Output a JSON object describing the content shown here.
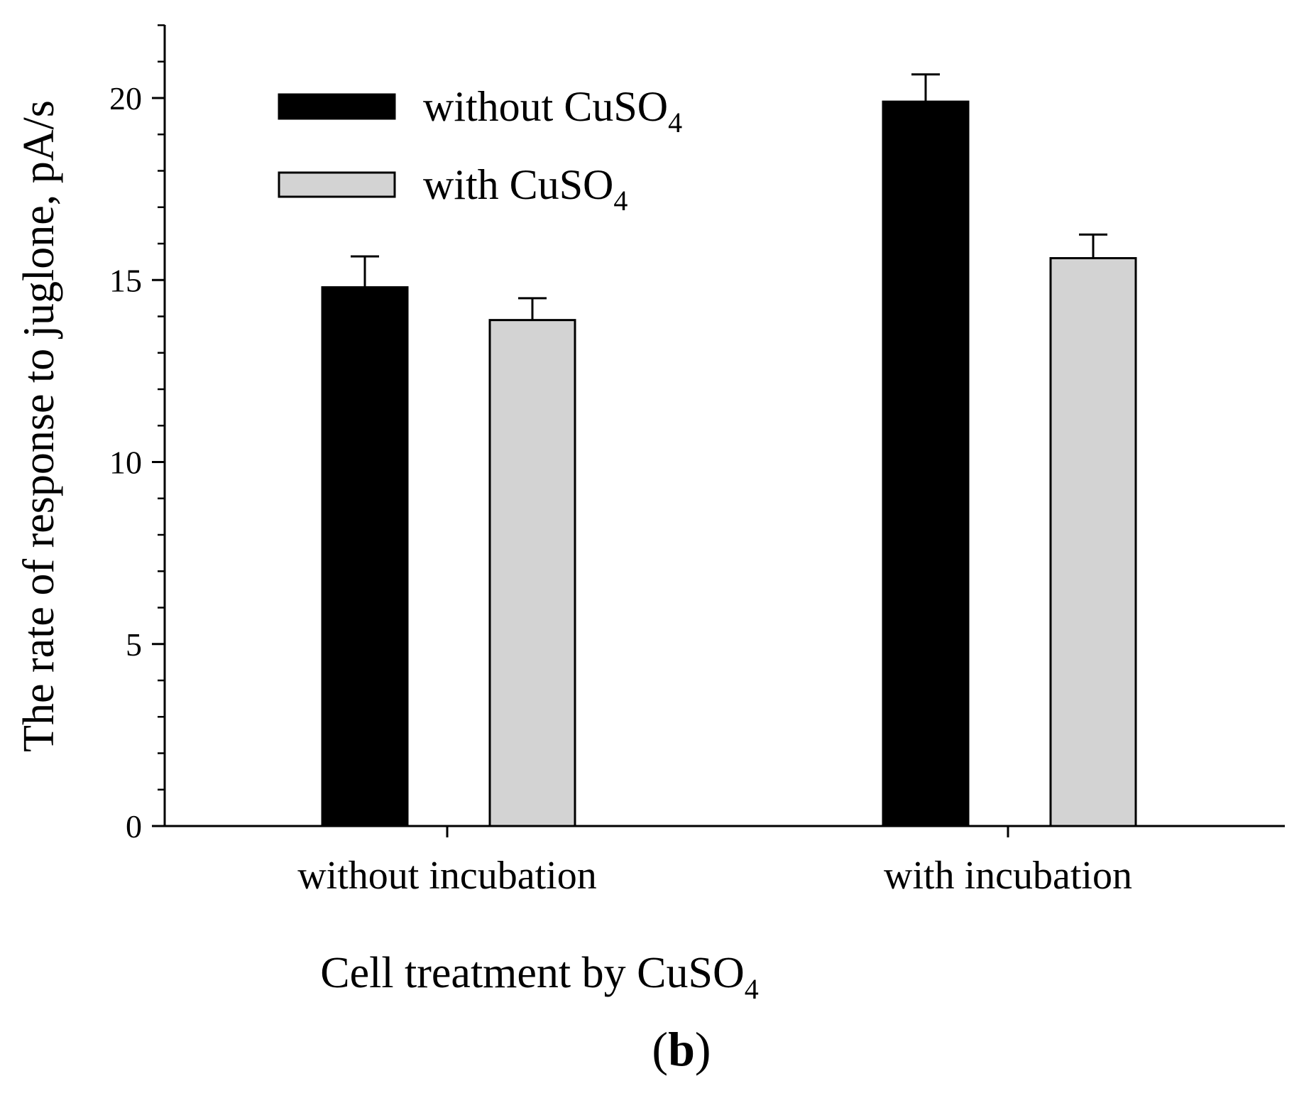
{
  "chart_data": {
    "type": "bar",
    "title": "",
    "categories": [
      "without incubation",
      "with incubation"
    ],
    "series": [
      {
        "name": "without CuSO4",
        "label_base": "without CuSO",
        "label_sub": "4",
        "color": "#000000",
        "values": [
          14.8,
          19.9
        ],
        "errors": [
          0.85,
          0.75
        ]
      },
      {
        "name": "with CuSO4",
        "label_base": "with CuSO",
        "label_sub": "4",
        "color": "#d3d3d3",
        "values": [
          13.9,
          15.6
        ],
        "errors": [
          0.6,
          0.65
        ]
      }
    ],
    "xlabel_base": "Cell  treatment  by  CuSO",
    "xlabel_sub": "4",
    "ylabel": "The rate of response to juglone, pA/s",
    "ylim": [
      0,
      22
    ],
    "yticks": [
      0,
      5,
      10,
      15,
      20
    ],
    "yminor_step": 1,
    "grid": false,
    "legend_position": "top-left",
    "panel_label_open": "(",
    "panel_label_letter": "b",
    "panel_label_close": ")"
  }
}
